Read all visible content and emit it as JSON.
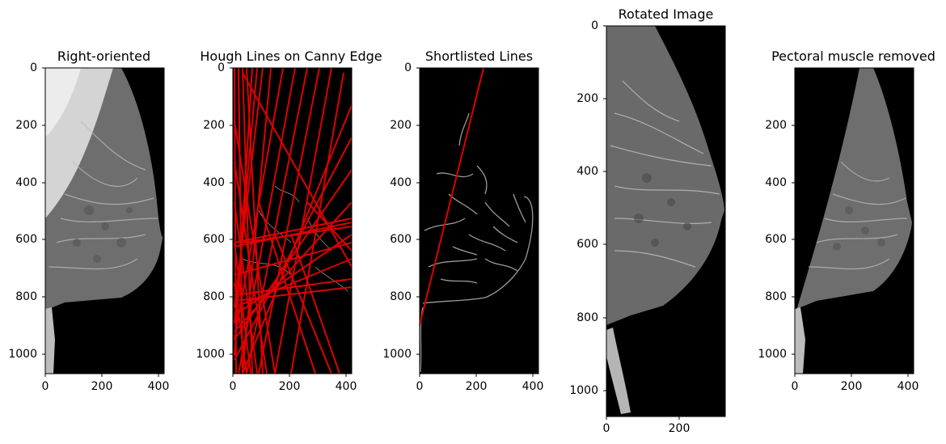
{
  "figure": {
    "panels": [
      {
        "id": "right-oriented",
        "title": "Right-oriented",
        "xlim": [
          0,
          420
        ],
        "ylim": [
          1070,
          0
        ],
        "xticks": [
          0,
          200,
          400
        ],
        "yticks": [
          0,
          200,
          400,
          600,
          800,
          1000
        ],
        "content": "mammogram-right-oriented"
      },
      {
        "id": "hough-lines",
        "title": "Hough Lines on Canny Edge",
        "xlim": [
          0,
          420
        ],
        "ylim": [
          1070,
          0
        ],
        "xticks": [
          0,
          200,
          400
        ],
        "yticks": [
          0,
          200,
          400,
          600,
          800,
          1000
        ],
        "content": "canny-edges-with-red-hough-lines",
        "line_color": "#e00000"
      },
      {
        "id": "shortlisted-lines",
        "title": "Shortlisted Lines",
        "xlim": [
          0,
          420
        ],
        "ylim": [
          1070,
          0
        ],
        "xticks": [
          0,
          200,
          400
        ],
        "yticks": [
          0,
          200,
          400,
          600,
          800,
          1000
        ],
        "content": "canny-edges-with-selected-line",
        "line_color": "#e00000",
        "selected_line": {
          "x1": 225,
          "y1": 0,
          "x2": 0,
          "y2": 900
        }
      },
      {
        "id": "rotated-image",
        "title": "Rotated Image",
        "xlim": [
          0,
          330
        ],
        "ylim": [
          1070,
          0
        ],
        "xticks": [
          0,
          200
        ],
        "yticks": [
          0,
          200,
          400,
          600,
          800,
          1000
        ],
        "content": "mammogram-rotated"
      },
      {
        "id": "pectoral-removed",
        "title": "Pectoral muscle removed",
        "xlim": [
          0,
          420
        ],
        "ylim": [
          1070,
          0
        ],
        "xticks": [
          0,
          200,
          400
        ],
        "yticks": [
          200,
          400,
          600,
          800,
          1000
        ],
        "content": "mammogram-pectoral-removed"
      }
    ]
  }
}
